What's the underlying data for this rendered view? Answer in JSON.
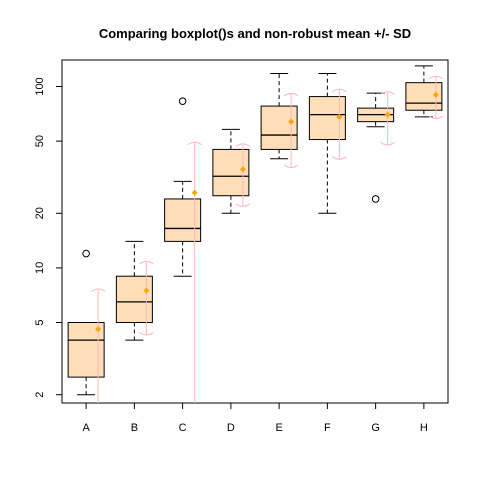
{
  "chart_data": {
    "type": "boxplot",
    "title": "Comparing boxplot()s and non-robust mean +/- SD",
    "xlabel": "",
    "ylabel": "",
    "y_scale": "log",
    "ylim": [
      1.8,
      140
    ],
    "y_ticks": [
      2,
      5,
      10,
      20,
      50,
      100
    ],
    "y_tick_labels": [
      "2",
      "5",
      "10",
      "20",
      "50",
      "100"
    ],
    "categories": [
      "A",
      "B",
      "C",
      "D",
      "E",
      "F",
      "G",
      "H"
    ],
    "boxes": [
      {
        "name": "A",
        "whisker_low": 2.0,
        "q1": 2.5,
        "median": 4.0,
        "q3": 5.0,
        "whisker_high": 5.0,
        "outliers": [
          12
        ]
      },
      {
        "name": "B",
        "whisker_low": 4.0,
        "q1": 5.0,
        "median": 6.5,
        "q3": 9.0,
        "whisker_high": 14.0,
        "outliers": []
      },
      {
        "name": "C",
        "whisker_low": 9.0,
        "q1": 14.0,
        "median": 16.5,
        "q3": 24.0,
        "whisker_high": 30.0,
        "outliers": [
          83
        ]
      },
      {
        "name": "D",
        "whisker_low": 20.0,
        "q1": 25.0,
        "median": 32.0,
        "q3": 45.0,
        "whisker_high": 58.0,
        "outliers": []
      },
      {
        "name": "E",
        "whisker_low": 40.0,
        "q1": 45.0,
        "median": 54.0,
        "q3": 78.0,
        "whisker_high": 118.0,
        "outliers": []
      },
      {
        "name": "F",
        "whisker_low": 20.0,
        "q1": 51.0,
        "median": 70.0,
        "q3": 88.0,
        "whisker_high": 118.0,
        "outliers": []
      },
      {
        "name": "G",
        "whisker_low": 60.0,
        "q1": 64.0,
        "median": 70.0,
        "q3": 76.0,
        "whisker_high": 92.0,
        "outliers": [
          24
        ]
      },
      {
        "name": "H",
        "whisker_low": 68.0,
        "q1": 74.0,
        "median": 81.0,
        "q3": 105.0,
        "whisker_high": 130.0,
        "outliers": []
      }
    ],
    "mean_sd": [
      {
        "name": "A",
        "mean": 4.6,
        "low": 1.8,
        "high": 7.6
      },
      {
        "name": "B",
        "mean": 7.5,
        "low": 4.3,
        "high": 10.8
      },
      {
        "name": "C",
        "mean": 26.0,
        "low": 1.8,
        "high": 49.0
      },
      {
        "name": "D",
        "mean": 35.0,
        "low": 22.0,
        "high": 48.0
      },
      {
        "name": "E",
        "mean": 64.0,
        "low": 36.0,
        "high": 91.0
      },
      {
        "name": "F",
        "mean": 68.0,
        "low": 40.0,
        "high": 96.0
      },
      {
        "name": "G",
        "mean": 70.0,
        "low": 48.0,
        "high": 93.0
      },
      {
        "name": "H",
        "mean": 90.0,
        "low": 67.0,
        "high": 113.0
      }
    ],
    "colors": {
      "box_fill": "#FFDEB8",
      "box_stroke": "#000000",
      "mean_marker": "#FFA500",
      "sd_bar": "#FFB6C1"
    },
    "grid": false,
    "legend": "none"
  }
}
